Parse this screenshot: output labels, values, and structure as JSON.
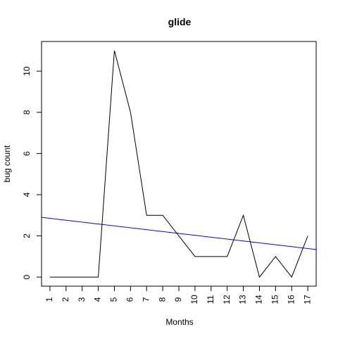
{
  "chart_data": {
    "type": "line",
    "title": "glide",
    "xlabel": "Months",
    "ylabel": "bug count",
    "x": [
      1,
      2,
      3,
      4,
      5,
      6,
      7,
      8,
      9,
      10,
      11,
      12,
      13,
      14,
      15,
      16,
      17
    ],
    "x_tick_labels": [
      "1",
      "2",
      "3",
      "4",
      "5",
      "6",
      "7",
      "8",
      "9",
      "10",
      "11",
      "12",
      "13",
      "14",
      "15",
      "16",
      "17"
    ],
    "y_ticks": [
      0,
      2,
      4,
      6,
      8,
      10
    ],
    "xlim": [
      0.48,
      17.52
    ],
    "ylim": [
      -0.44,
      11.44
    ],
    "grid": false,
    "series": [
      {
        "values": [
          0,
          0,
          0,
          0,
          11,
          8,
          3,
          3,
          2,
          1,
          1,
          1,
          3,
          0,
          1,
          0,
          2
        ],
        "color": "#000000"
      }
    ],
    "trend_line": {
      "color": "#0000ff",
      "points": [
        [
          0.48,
          2.9
        ],
        [
          17.52,
          1.34
        ]
      ]
    }
  }
}
